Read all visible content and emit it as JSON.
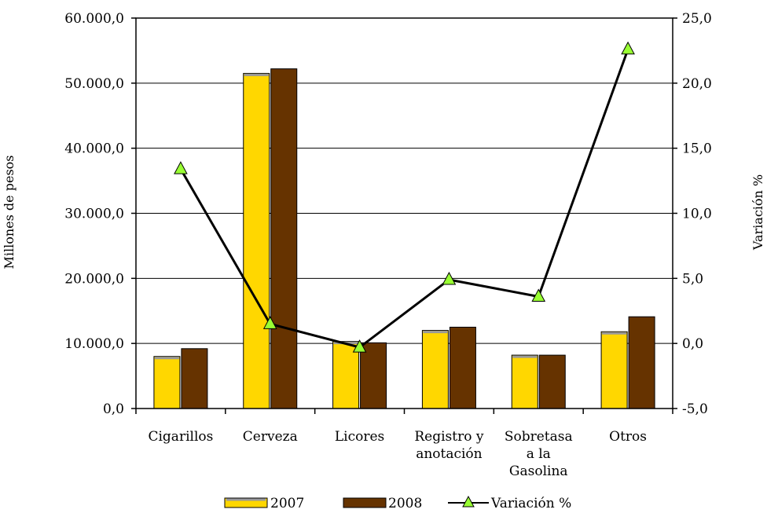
{
  "chart_data": {
    "type": "bar",
    "categories": [
      [
        "Cigarillos"
      ],
      [
        "Cerveza"
      ],
      [
        "Licores"
      ],
      [
        "Registro y",
        "anotación"
      ],
      [
        "Sobretasa",
        "a la",
        "Gasolina"
      ],
      [
        "Otros"
      ]
    ],
    "series": [
      {
        "name": "2007",
        "type": "bar",
        "axis": "left",
        "color": "#FFD700",
        "values": [
          8000,
          51500,
          10300,
          12000,
          8200,
          11800
        ]
      },
      {
        "name": "2008",
        "type": "bar",
        "axis": "left",
        "color": "#663300",
        "values": [
          9200,
          52200,
          10100,
          12500,
          8200,
          14100
        ]
      },
      {
        "name": "Variación %",
        "type": "line",
        "axis": "right",
        "color": "#000000",
        "marker_color": "#99FF33",
        "values": [
          13.4,
          1.5,
          -0.3,
          4.9,
          3.6,
          22.6
        ]
      }
    ],
    "ylabel": "Millones de pesos",
    "y2label": "Variación %",
    "ylim": [
      0,
      60000
    ],
    "y2lim": [
      -5,
      25
    ],
    "yticks": [
      "0,0",
      "10.000,0",
      "20.000,0",
      "30.000,0",
      "40.000,0",
      "50.000,0",
      "60.000,0"
    ],
    "y2ticks": [
      "-5,0",
      "0,0",
      "5,0",
      "10,0",
      "15,0",
      "20,0",
      "25,0"
    ],
    "grid": true,
    "legend_position": "bottom"
  }
}
